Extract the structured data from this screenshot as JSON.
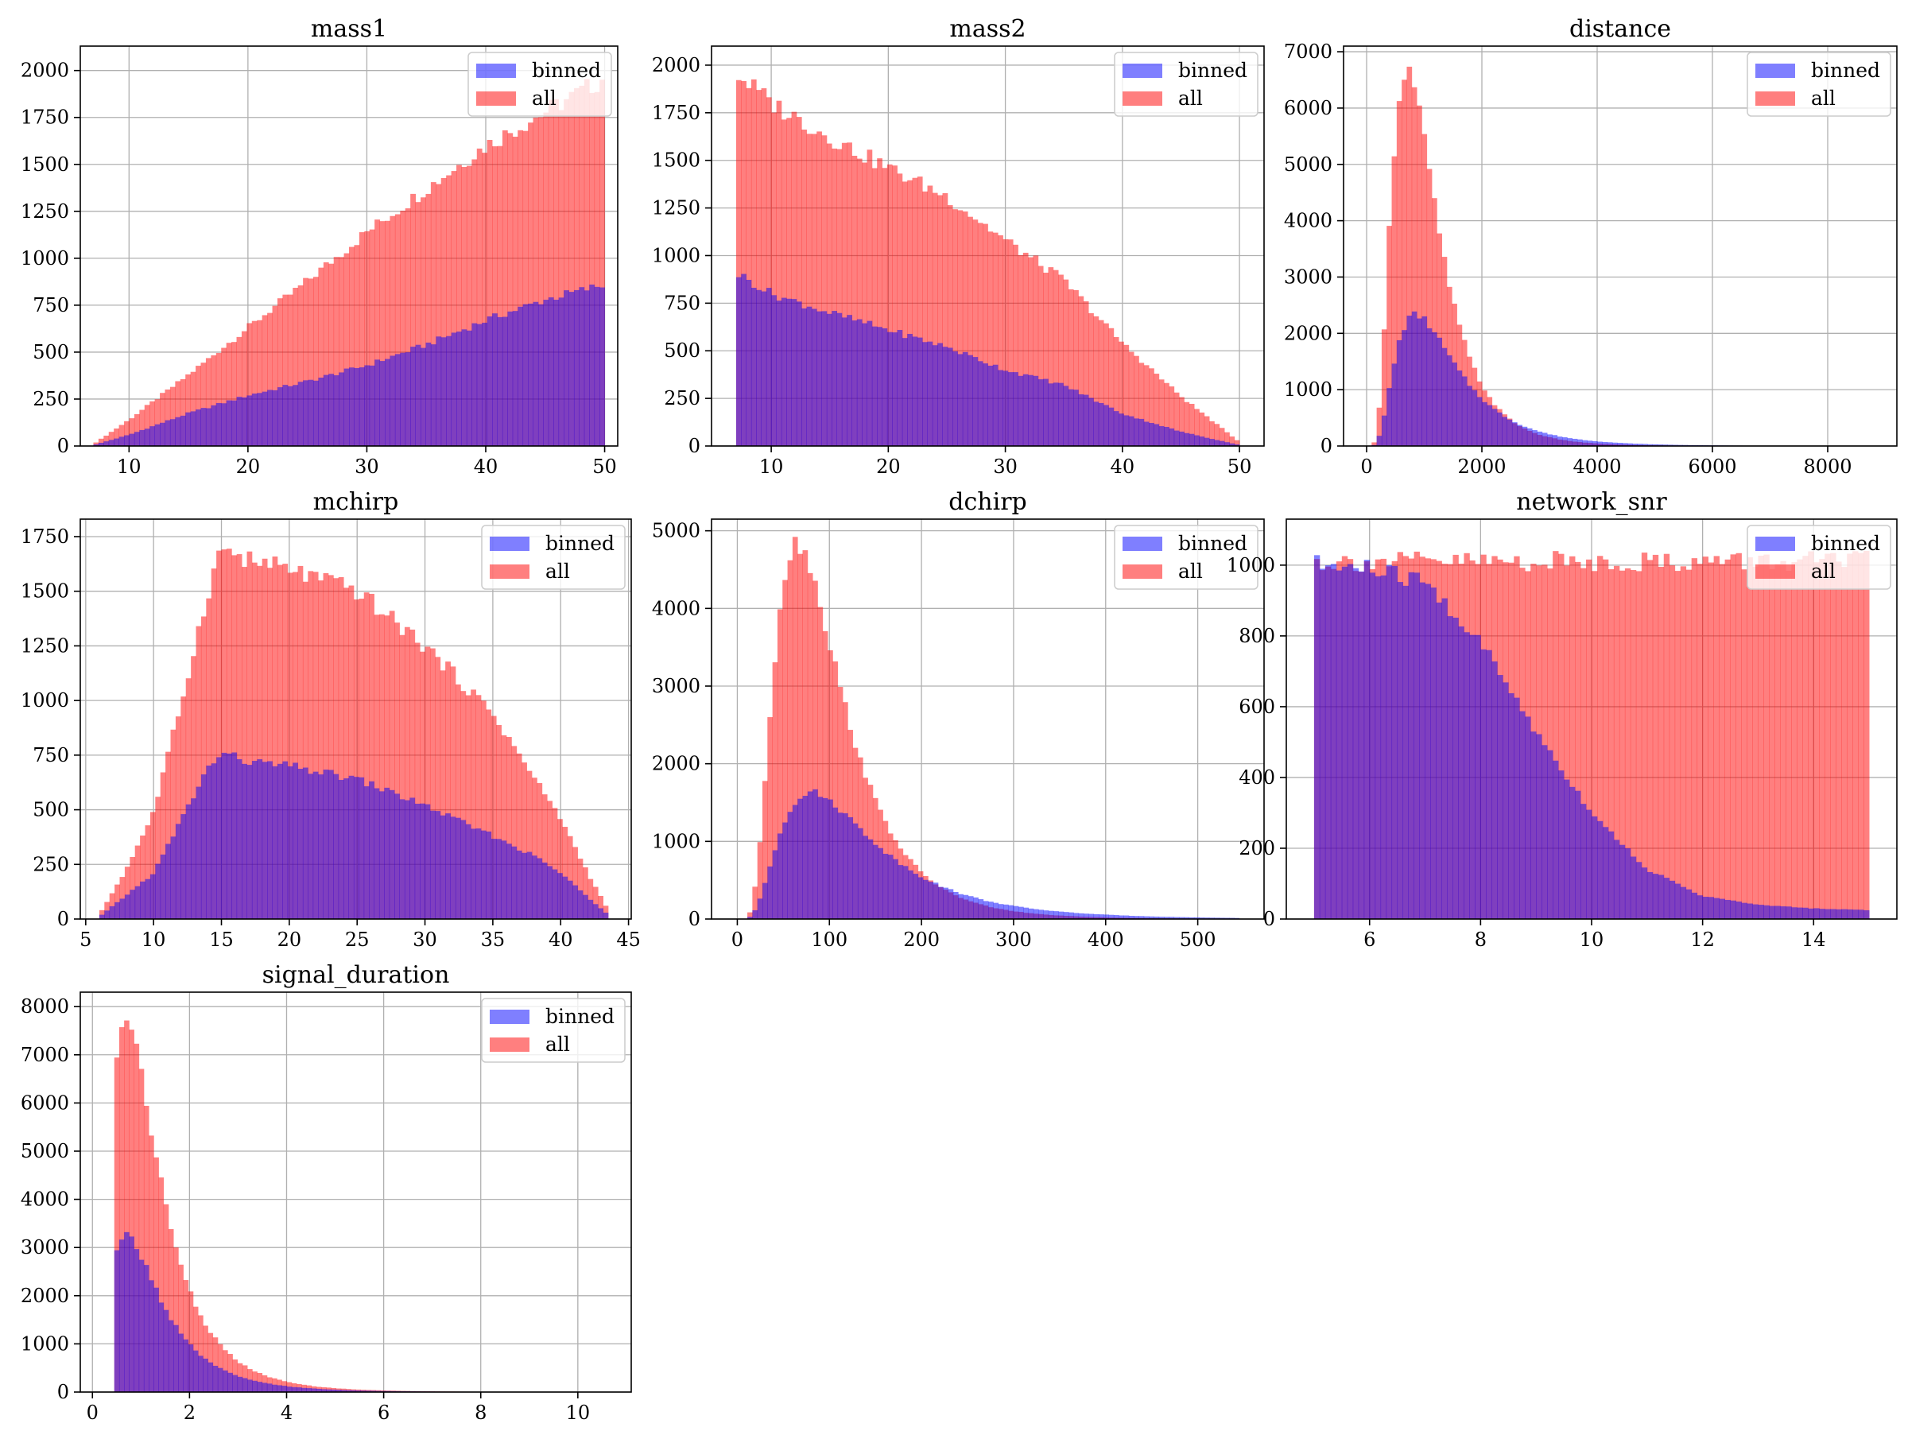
{
  "figure": {
    "colors": {
      "binned": "#0000ff",
      "all": "#ff0000",
      "overlap": "#c03a7a"
    },
    "legend_position": "upper right",
    "grid": true
  },
  "chart_data": [
    {
      "type": "bar",
      "title": "mass1",
      "xlim": [
        5.9,
        51.1
      ],
      "ylim": [
        0,
        2130
      ],
      "xticks": [
        10,
        20,
        30,
        40,
        50
      ],
      "yticks": [
        0,
        250,
        500,
        750,
        1000,
        1250,
        1500,
        1750,
        2000
      ],
      "legend": [
        "binned",
        "all"
      ],
      "series": [
        {
          "name": "all",
          "shape": "ramp",
          "range": [
            7,
            50
          ],
          "points": [
            [
              7,
              10
            ],
            [
              10,
              140
            ],
            [
              15,
              380
            ],
            [
              20,
              630
            ],
            [
              25,
              880
            ],
            [
              30,
              1140
            ],
            [
              35,
              1370
            ],
            [
              40,
              1600
            ],
            [
              45,
              1780
            ],
            [
              50,
              1960
            ]
          ]
        },
        {
          "name": "binned",
          "shape": "ramp",
          "range": [
            7,
            50
          ],
          "points": [
            [
              7,
              5
            ],
            [
              10,
              60
            ],
            [
              15,
              175
            ],
            [
              20,
              270
            ],
            [
              25,
              345
            ],
            [
              30,
              430
            ],
            [
              35,
              540
            ],
            [
              40,
              670
            ],
            [
              45,
              780
            ],
            [
              50,
              860
            ]
          ]
        }
      ]
    },
    {
      "type": "bar",
      "title": "mass2",
      "xlim": [
        4.9,
        52.1
      ],
      "ylim": [
        0,
        2100
      ],
      "xticks": [
        10,
        20,
        30,
        40,
        50
      ],
      "yticks": [
        0,
        250,
        500,
        750,
        1000,
        1250,
        1500,
        1750,
        2000
      ],
      "legend": [
        "binned",
        "all"
      ],
      "series": [
        {
          "name": "all",
          "shape": "ramp",
          "range": [
            7,
            50
          ],
          "points": [
            [
              7,
              1960
            ],
            [
              10,
              1800
            ],
            [
              15,
              1620
            ],
            [
              20,
              1460
            ],
            [
              25,
              1310
            ],
            [
              30,
              1080
            ],
            [
              35,
              870
            ],
            [
              40,
              540
            ],
            [
              45,
              260
            ],
            [
              50,
              20
            ]
          ]
        },
        {
          "name": "binned",
          "shape": "ramp",
          "range": [
            7,
            50
          ],
          "points": [
            [
              7,
              910
            ],
            [
              10,
              800
            ],
            [
              15,
              700
            ],
            [
              20,
              610
            ],
            [
              25,
              520
            ],
            [
              30,
              400
            ],
            [
              35,
              320
            ],
            [
              40,
              170
            ],
            [
              45,
              75
            ],
            [
              50,
              5
            ]
          ]
        }
      ]
    },
    {
      "type": "bar",
      "title": "distance",
      "xlim": [
        -400,
        9200
      ],
      "ylim": [
        0,
        7100
      ],
      "xticks": [
        0,
        2000,
        4000,
        6000,
        8000
      ],
      "yticks": [
        0,
        1000,
        2000,
        3000,
        4000,
        5000,
        6000,
        7000
      ],
      "legend": [
        "binned",
        "all"
      ],
      "series": [
        {
          "name": "all",
          "shape": "curve",
          "range": [
            0,
            8700
          ],
          "model": "lognormal",
          "peak": 6700,
          "mode": 700,
          "sigma": 0.55
        },
        {
          "name": "binned",
          "shape": "curve",
          "range": [
            0,
            8700
          ],
          "model": "lognormal",
          "peak": 2330,
          "mode": 850,
          "sigma": 0.6
        }
      ]
    },
    {
      "type": "bar",
      "title": "mchirp",
      "xlim": [
        4.6,
        45.2
      ],
      "ylim": [
        0,
        1830
      ],
      "xticks": [
        5,
        10,
        15,
        20,
        25,
        30,
        35,
        40,
        45
      ],
      "yticks": [
        0,
        250,
        500,
        750,
        1000,
        1250,
        1500,
        1750
      ],
      "legend": [
        "binned",
        "all"
      ],
      "series": [
        {
          "name": "all",
          "shape": "ramp",
          "range": [
            6,
            43.5
          ],
          "points": [
            [
              6,
              20
            ],
            [
              8,
              230
            ],
            [
              10,
              490
            ],
            [
              12,
              980
            ],
            [
              14,
              1500
            ],
            [
              15,
              1700
            ],
            [
              17,
              1640
            ],
            [
              20,
              1600
            ],
            [
              25,
              1500
            ],
            [
              30,
              1250
            ],
            [
              35,
              940
            ],
            [
              38,
              650
            ],
            [
              40,
              460
            ],
            [
              42,
              210
            ],
            [
              43.5,
              40
            ]
          ]
        },
        {
          "name": "binned",
          "shape": "ramp",
          "range": [
            6,
            43.5
          ],
          "points": [
            [
              6,
              10
            ],
            [
              8,
              110
            ],
            [
              10,
              210
            ],
            [
              12,
              450
            ],
            [
              14,
              690
            ],
            [
              15,
              760
            ],
            [
              17,
              720
            ],
            [
              20,
              700
            ],
            [
              25,
              640
            ],
            [
              30,
              520
            ],
            [
              35,
              380
            ],
            [
              38,
              290
            ],
            [
              40,
              210
            ],
            [
              42,
              100
            ],
            [
              43.5,
              20
            ]
          ]
        }
      ]
    },
    {
      "type": "bar",
      "title": "dchirp",
      "xlim": [
        -28,
        572
      ],
      "ylim": [
        0,
        5150
      ],
      "xticks": [
        0,
        100,
        200,
        300,
        400,
        500
      ],
      "yticks": [
        0,
        1000,
        2000,
        3000,
        4000,
        5000
      ],
      "legend": [
        "binned",
        "all"
      ],
      "series": [
        {
          "name": "all",
          "shape": "curve",
          "range": [
            0,
            545
          ],
          "model": "lognormal",
          "peak": 4850,
          "mode": 65,
          "sigma": 0.55
        },
        {
          "name": "binned",
          "shape": "curve",
          "range": [
            0,
            545
          ],
          "model": "lognormal",
          "peak": 1630,
          "mode": 80,
          "sigma": 0.62
        }
      ]
    },
    {
      "type": "bar",
      "title": "network_snr",
      "xlim": [
        4.5,
        15.5
      ],
      "ylim": [
        0,
        1130
      ],
      "xticks": [
        6,
        8,
        10,
        12,
        14
      ],
      "yticks": [
        0,
        200,
        400,
        600,
        800,
        1000
      ],
      "legend": [
        "binned",
        "all"
      ],
      "series": [
        {
          "name": "all",
          "shape": "ramp",
          "range": [
            5,
            15
          ],
          "points": [
            [
              5,
              1010
            ],
            [
              15,
              1010
            ]
          ]
        },
        {
          "name": "binned",
          "shape": "ramp",
          "range": [
            5,
            15
          ],
          "points": [
            [
              5,
              1000
            ],
            [
              6,
              990
            ],
            [
              7,
              950
            ],
            [
              8,
              780
            ],
            [
              9,
              530
            ],
            [
              10,
              300
            ],
            [
              11,
              140
            ],
            [
              12,
              65
            ],
            [
              13,
              40
            ],
            [
              14,
              30
            ],
            [
              15,
              25
            ]
          ]
        }
      ]
    },
    {
      "type": "bar",
      "title": "signal_duration",
      "xlim": [
        -0.25,
        11.1
      ],
      "ylim": [
        0,
        8300
      ],
      "xticks": [
        0,
        2,
        4,
        6,
        8,
        10
      ],
      "yticks": [
        0,
        1000,
        2000,
        3000,
        4000,
        5000,
        6000,
        7000,
        8000
      ],
      "legend": [
        "binned",
        "all"
      ],
      "series": [
        {
          "name": "all",
          "shape": "curve",
          "range": [
            0.45,
            10.6
          ],
          "model": "lognormal",
          "peak": 7800,
          "mode": 0.7,
          "sigma": 0.65
        },
        {
          "name": "binned",
          "shape": "curve",
          "range": [
            0.45,
            10.6
          ],
          "model": "lognormal",
          "peak": 3250,
          "mode": 0.7,
          "sigma": 0.68
        }
      ]
    }
  ]
}
